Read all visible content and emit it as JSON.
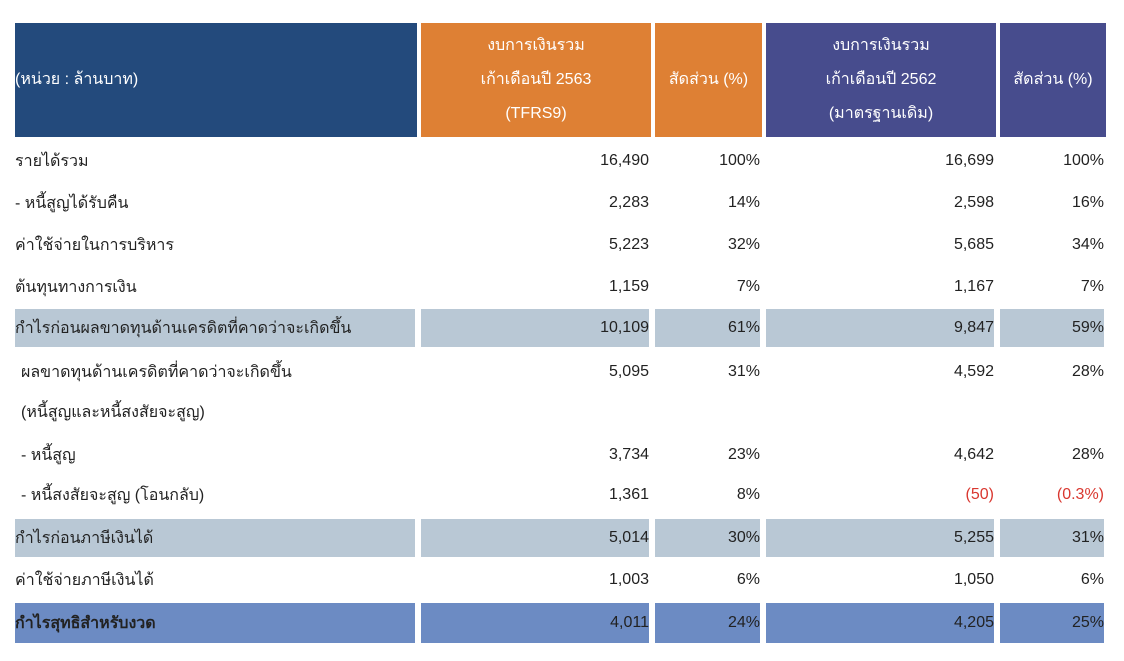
{
  "header": {
    "unit": "(หน่วย : ล้านบาท)",
    "col1": [
      "งบการเงินรวม",
      "เก้าเดือนปี 2563",
      "(TFRS9)"
    ],
    "col2": "สัดส่วน (%)",
    "col3": [
      "งบการเงินรวม",
      "เก้าเดือนปี 2562",
      "(มาตรฐานเดิม)"
    ],
    "col4": "สัดส่วน (%)"
  },
  "rows": [
    {
      "label": "รายได้รวม",
      "v1": "16,490",
      "p1": "100%",
      "v2": "16,699",
      "p2": "100%"
    },
    {
      "label": " - หนี้สูญได้รับคืน",
      "v1": "2,283",
      "p1": "14%",
      "v2": "2,598",
      "p2": "16%"
    },
    {
      "label": "ค่าใช้จ่ายในการบริหาร",
      "v1": "5,223",
      "p1": "32%",
      "v2": "5,685",
      "p2": "34%"
    },
    {
      "label": "ต้นทุนทางการเงิน",
      "v1": "1,159",
      "p1": "7%",
      "v2": "1,167",
      "p2": "7%"
    },
    {
      "label": "กำไรก่อนผลขาดทุนด้านเครดิตที่คาดว่าจะเกิดขึ้น",
      "v1": "10,109",
      "p1": "61%",
      "v2": "9,847",
      "p2": "59%"
    },
    {
      "label": "ผลขาดทุนด้านเครดิตที่คาดว่าจะเกิดขึ้น",
      "v1": "5,095",
      "p1": "31%",
      "v2": "4,592",
      "p2": "28%"
    },
    {
      "label": "(หนี้สูญและหนี้สงสัยจะสูญ)"
    },
    {
      "label": " - หนี้สูญ",
      "v1": "3,734",
      "p1": "23%",
      "v2": "4,642",
      "p2": "28%"
    },
    {
      "label": " - หนี้สงสัยจะสูญ (โอนกลับ)",
      "v1": "1,361",
      "p1": "8%",
      "v2": "(50)",
      "p2": "(0.3%)"
    },
    {
      "label": "กำไรก่อนภาษีเงินได้",
      "v1": "5,014",
      "p1": "30%",
      "v2": "5,255",
      "p2": "31%"
    },
    {
      "label": "ค่าใช้จ่ายภาษีเงินได้",
      "v1": "1,003",
      "p1": "6%",
      "v2": "1,050",
      "p2": "6%"
    },
    {
      "label": "กำไรสุทธิสำหรับงวด",
      "v1": "4,011",
      "p1": "24%",
      "v2": "4,205",
      "p2": "25%"
    }
  ],
  "colors": {
    "navy": "#234a7c",
    "orange": "#de8034",
    "purple": "#474c8d",
    "highlight": "#b9c8d5",
    "total": "#6c8bc3",
    "negative": "#d9372f"
  }
}
